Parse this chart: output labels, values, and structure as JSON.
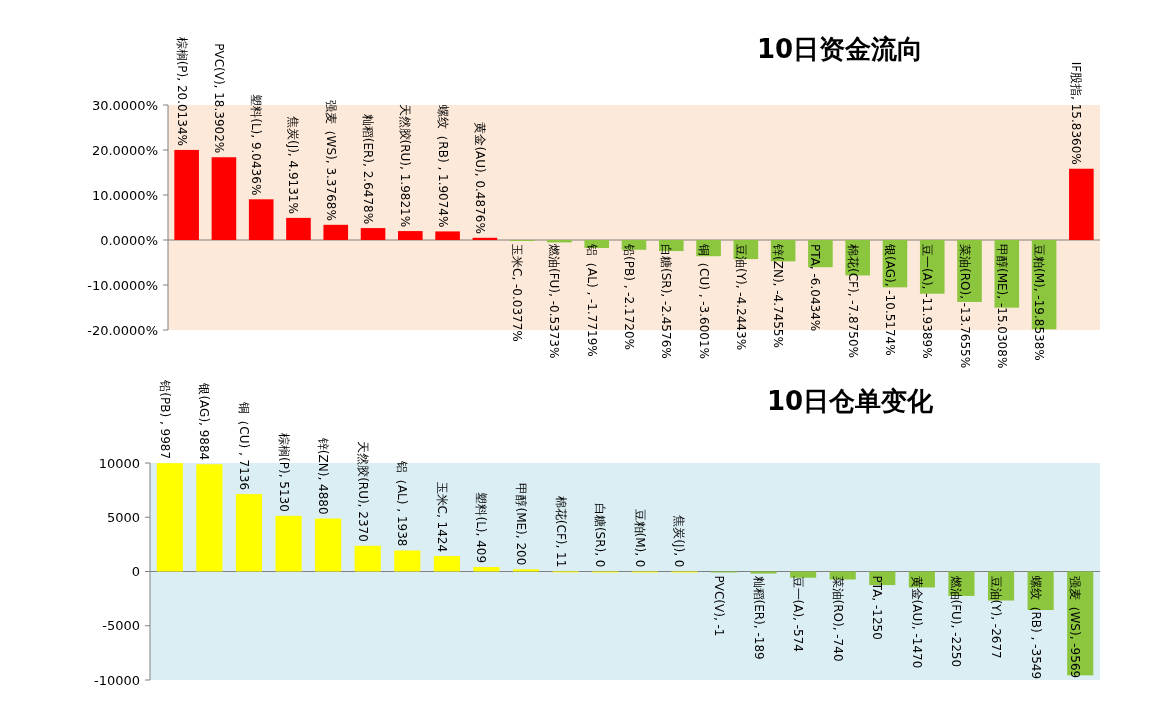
{
  "chart_data": [
    {
      "type": "bar",
      "title": "10日资金流向",
      "categories": [
        null,
        null,
        null,
        null,
        null,
        null,
        null,
        null,
        null,
        null,
        null,
        null,
        null,
        null,
        null,
        null,
        null,
        null,
        null,
        null,
        null,
        null,
        null,
        null,
        null
      ],
      "values": [
        20.0134,
        18.3902,
        9.0436,
        4.9131,
        3.3768,
        2.6478,
        1.9821,
        1.9074,
        0.4876,
        -0.0377,
        -0.5373,
        -1.7719,
        -2.172,
        -2.4576,
        -3.6001,
        -4.2443,
        -4.7455,
        -6.0434,
        -7.875,
        -10.5174,
        -11.9389,
        -13.7655,
        -15.0308,
        -19.8538,
        15.836
      ],
      "colors": [
        "#ff0000",
        "#ff0000",
        "#ff0000",
        "#ff0000",
        "#ff0000",
        "#ff0000",
        "#ff0000",
        "#ff0000",
        "#ff0000",
        "#8cc63f",
        "#8cc63f",
        "#8cc63f",
        "#8cc63f",
        "#8cc63f",
        "#8cc63f",
        "#8cc63f",
        "#8cc63f",
        "#8cc63f",
        "#8cc63f",
        "#8cc63f",
        "#8cc63f",
        "#8cc63f",
        "#8cc63f",
        "#8cc63f",
        "#ff0000"
      ],
      "value_labels": [
        "棕榈(P), 20.0134%",
        "PVC(V), 18.3902%",
        "塑料(L), 9.0436%",
        "焦炭(J), 4.9131%",
        "强麦（WS), 3.3768%",
        "籼稻(ER), 2.6478%",
        "天然胶(RU), 1.9821%",
        "螺纹（RB) , 1.9074%",
        "黄金(AU), 0.4876%",
        "玉米C, -0.0377%",
        "燃油(FU), -0.5373%",
        "铝（AL) , -1.7719%",
        "铅(PB) , -2.1720%",
        "白糖(SR), -2.4576%",
        "铜（CU) , -3.6001%",
        "豆油(Y), -4.2443%",
        "锌(ZN), -4.7455%",
        "PTA, -6.0434%",
        "棉花(CF), -7.8750%",
        "银(AG), -10.5174%",
        "豆一(A), -11.9389%",
        "菜油(RO), -13.7655%",
        "甲醇(ME), -15.0308%",
        "豆粕(M), -19.8538%",
        "IF股指, 15.8360%"
      ],
      "ylim": [
        -20,
        30
      ],
      "yticks": [
        {
          "value": -20,
          "label": "-20.0000%"
        },
        {
          "value": -10,
          "label": "-10.0000%"
        },
        {
          "value": 0,
          "label": "0.0000%"
        },
        {
          "value": 10,
          "label": "10.0000%"
        },
        {
          "value": 20,
          "label": "20.0000%"
        },
        {
          "value": 30,
          "label": "30.0000%"
        }
      ]
    },
    {
      "type": "bar",
      "title": "10日仓单变化",
      "categories": [
        null,
        null,
        null,
        null,
        null,
        null,
        null,
        null,
        null,
        null,
        null,
        null,
        null,
        null,
        null,
        null,
        null,
        null,
        null,
        null,
        null,
        null,
        null,
        null
      ],
      "values": [
        9987,
        9884,
        7136,
        5130,
        4880,
        2370,
        1938,
        1424,
        409,
        200,
        11,
        0,
        0,
        0,
        -1,
        -189,
        -574,
        -740,
        -1250,
        -1470,
        -2250,
        -2677,
        -3549,
        -9569
      ],
      "colors": [
        "#ffff00",
        "#ffff00",
        "#ffff00",
        "#ffff00",
        "#ffff00",
        "#ffff00",
        "#ffff00",
        "#ffff00",
        "#ffff00",
        "#ffff00",
        "#ffff00",
        "#ffff00",
        "#ffff00",
        "#ffff00",
        "#8cc63f",
        "#8cc63f",
        "#8cc63f",
        "#8cc63f",
        "#8cc63f",
        "#8cc63f",
        "#8cc63f",
        "#8cc63f",
        "#8cc63f",
        "#8cc63f"
      ],
      "value_labels": [
        "铅(PB) , 9987",
        "银(AG), 9884",
        "铜（CU) , 7136",
        "棕榈(P), 5130",
        "锌(ZN), 4880",
        "天然胶(RU), 2370",
        "铝（AL) , 1938",
        "玉米C, 1424",
        "塑料(L), 409",
        "甲醇(ME), 200",
        "棉花(CF), 11",
        "白糖(SR), 0",
        "豆粕(M), 0",
        "焦炭(J), 0",
        "PVC(V), -1",
        "籼稻(ER), -189",
        "豆一(A), -574",
        "菜油(RO), -740",
        "PTA, -1250",
        "黄金(AU), -1470",
        "燃油(FU), -2250",
        "豆油(Y), -2677",
        "螺纹（RB) , -3549",
        "强麦（WS), -9569"
      ],
      "ylim": [
        -10000,
        10000
      ],
      "yticks": [
        -10000,
        -5000,
        0,
        5000,
        10000
      ]
    }
  ]
}
